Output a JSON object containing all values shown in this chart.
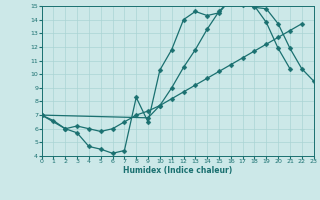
{
  "xlabel": "Humidex (Indice chaleur)",
  "bg_color": "#cce8e8",
  "line_color": "#1a7070",
  "grid_color": "#aad4d4",
  "xlim": [
    0,
    23
  ],
  "ylim": [
    4,
    15
  ],
  "xticks": [
    0,
    1,
    2,
    3,
    4,
    5,
    6,
    7,
    8,
    9,
    10,
    11,
    12,
    13,
    14,
    15,
    16,
    17,
    18,
    19,
    20,
    21,
    22,
    23
  ],
  "yticks": [
    4,
    5,
    6,
    7,
    8,
    9,
    10,
    11,
    12,
    13,
    14,
    15
  ],
  "curve1_x": [
    0,
    1,
    2,
    3,
    4,
    5,
    6,
    7,
    8,
    9,
    10,
    11,
    12,
    13,
    14,
    15,
    16,
    17,
    18,
    19,
    20,
    21
  ],
  "curve1_y": [
    7.0,
    6.6,
    6.0,
    5.7,
    4.7,
    4.5,
    4.2,
    4.4,
    8.3,
    6.5,
    10.3,
    11.8,
    14.0,
    14.6,
    14.3,
    14.5,
    15.5,
    15.1,
    15.0,
    13.8,
    11.9,
    10.4
  ],
  "curve2_x": [
    0,
    2,
    3,
    4,
    5,
    6,
    7,
    8,
    9,
    10,
    11,
    12,
    13,
    14,
    15,
    16,
    17,
    18,
    19,
    20,
    21,
    22
  ],
  "curve2_y": [
    7.0,
    6.0,
    6.2,
    6.0,
    5.8,
    6.0,
    6.5,
    7.0,
    7.3,
    7.7,
    8.2,
    8.7,
    9.2,
    9.7,
    10.2,
    10.7,
    11.2,
    11.7,
    12.2,
    12.7,
    13.2,
    13.7
  ],
  "curve3_x": [
    0,
    9,
    10,
    11,
    12,
    13,
    14,
    15,
    16,
    17,
    18,
    19,
    20,
    21,
    22,
    23
  ],
  "curve3_y": [
    7.0,
    6.8,
    7.7,
    9.0,
    10.5,
    11.8,
    13.3,
    14.6,
    15.5,
    15.4,
    14.9,
    14.8,
    13.7,
    11.9,
    10.4,
    9.5
  ]
}
